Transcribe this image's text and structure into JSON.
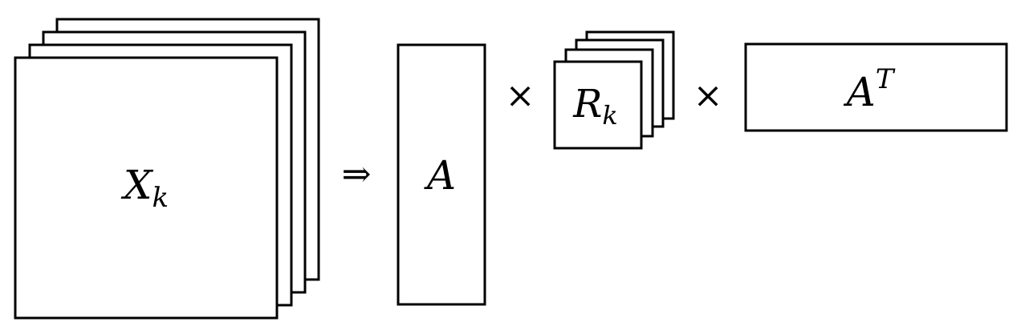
{
  "diagram": {
    "x_stack": {
      "symbol": "X",
      "subscript": "k"
    },
    "implies_symbol": "⇒",
    "a_matrix": {
      "symbol": "A"
    },
    "times_symbol_1": "×",
    "r_stack": {
      "symbol": "R",
      "subscript": "k"
    },
    "times_symbol_2": "×",
    "a_transpose": {
      "symbol": "A",
      "superscript": "T"
    }
  }
}
